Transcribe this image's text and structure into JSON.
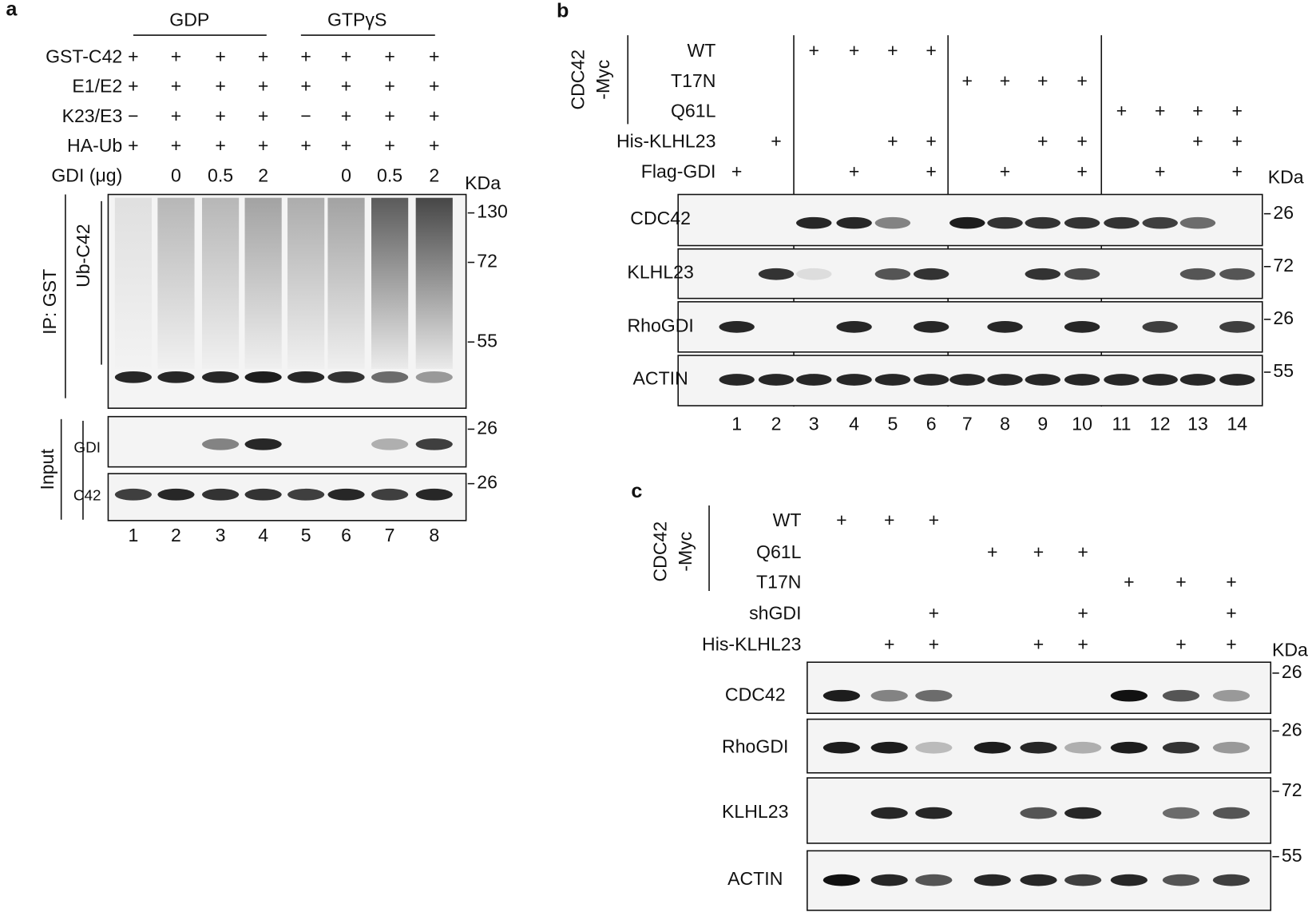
{
  "panel_a": {
    "label": "a",
    "groups": [
      "GDP",
      "GTPγS"
    ],
    "conditions": [
      {
        "label": "GST-C42",
        "marks": [
          "+",
          "+",
          "+",
          "+",
          "+",
          "+",
          "+",
          "+"
        ]
      },
      {
        "label": "E1/E2",
        "marks": [
          "+",
          "+",
          "+",
          "+",
          "+",
          "+",
          "+",
          "+"
        ]
      },
      {
        "label": "K23/E3",
        "marks": [
          "−",
          "+",
          "+",
          "+",
          "−",
          "+",
          "+",
          "+"
        ]
      },
      {
        "label": "HA-Ub",
        "marks": [
          "+",
          "+",
          "+",
          "+",
          "+",
          "+",
          "+",
          "+"
        ]
      },
      {
        "label": "GDI (μg)",
        "marks": [
          null,
          "0",
          "0.5",
          "2",
          null,
          "0",
          "0.5",
          "2"
        ]
      }
    ],
    "kda_label": "KDa",
    "side_labels": [
      "IP: GST",
      "Input"
    ],
    "blots": [
      {
        "name": "Ub-C42",
        "markers": [
          130,
          72,
          55
        ]
      },
      {
        "name": "GDI",
        "markers": [
          26
        ]
      },
      {
        "name": "C42",
        "markers": [
          26
        ]
      }
    ],
    "lanes": [
      1,
      2,
      3,
      4,
      5,
      6,
      7,
      8
    ]
  },
  "panel_b": {
    "label": "b",
    "construct": [
      "CDC42",
      "-Myc"
    ],
    "conditions": [
      {
        "label": "WT",
        "marks": [
          null,
          null,
          "+",
          "+",
          "+",
          "+",
          null,
          null,
          null,
          null,
          null,
          null,
          null,
          null
        ]
      },
      {
        "label": "T17N",
        "marks": [
          null,
          null,
          null,
          null,
          null,
          null,
          "+",
          "+",
          "+",
          "+",
          null,
          null,
          null,
          null
        ]
      },
      {
        "label": "Q61L",
        "marks": [
          null,
          null,
          null,
          null,
          null,
          null,
          null,
          null,
          null,
          null,
          "+",
          "+",
          "+",
          "+"
        ]
      },
      {
        "label": "His-KLHL23",
        "marks": [
          null,
          "+",
          null,
          null,
          "+",
          "+",
          null,
          null,
          "+",
          "+",
          null,
          null,
          "+",
          "+"
        ]
      },
      {
        "label": "Flag-GDI",
        "marks": [
          "+",
          null,
          null,
          "+",
          null,
          "+",
          null,
          "+",
          null,
          "+",
          null,
          "+",
          null,
          "+"
        ]
      }
    ],
    "kda_label": "KDa",
    "blots": [
      {
        "name": "CDC42",
        "markers": [
          26
        ]
      },
      {
        "name": "KLHL23",
        "markers": [
          72
        ]
      },
      {
        "name": "RhoGDI",
        "markers": [
          26
        ]
      },
      {
        "name": "ACTIN",
        "markers": [
          55
        ]
      }
    ],
    "lanes": [
      1,
      2,
      3,
      4,
      5,
      6,
      7,
      8,
      9,
      10,
      11,
      12,
      13,
      14
    ]
  },
  "panel_c": {
    "label": "c",
    "construct": [
      "CDC42",
      "-Myc"
    ],
    "conditions": [
      {
        "label": "WT",
        "marks": [
          "+",
          "+",
          "+",
          null,
          null,
          null,
          null,
          null,
          null
        ]
      },
      {
        "label": "Q61L",
        "marks": [
          null,
          null,
          null,
          "+",
          "+",
          "+",
          null,
          null,
          null
        ]
      },
      {
        "label": "T17N",
        "marks": [
          null,
          null,
          null,
          null,
          null,
          null,
          "+",
          "+",
          "+"
        ]
      },
      {
        "label": "shGDI",
        "marks": [
          null,
          null,
          "+",
          null,
          null,
          "+",
          null,
          null,
          "+"
        ]
      },
      {
        "label": "His-KLHL23",
        "marks": [
          null,
          "+",
          "+",
          null,
          "+",
          "+",
          null,
          "+",
          "+"
        ]
      }
    ],
    "kda_label": "KDa",
    "blots": [
      {
        "name": "CDC42",
        "markers": [
          26
        ]
      },
      {
        "name": "RhoGDI",
        "markers": [
          26
        ]
      },
      {
        "name": "KLHL23",
        "markers": [
          72
        ]
      },
      {
        "name": "ACTIN",
        "markers": [
          55
        ]
      }
    ]
  }
}
